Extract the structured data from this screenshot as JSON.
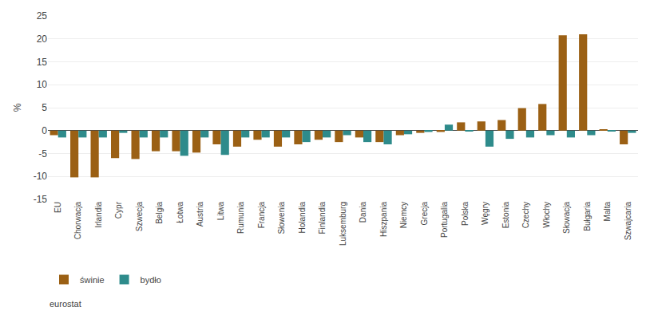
{
  "chart_data": {
    "type": "bar",
    "y_label": "%",
    "annotations": [
      "eurostat"
    ],
    "categories": [
      "EU",
      "Chorwacja",
      "Irlandia",
      "Cypr",
      "Szwecja",
      "Belgia",
      "Łotwa",
      "Austria",
      "Litwa",
      "Rumunia",
      "Francja",
      "Słowenia",
      "Holandia",
      "Finlandia",
      "Luksemburg",
      "Dania",
      "Hiszpania",
      "Niemcy",
      "Grecja",
      "Portugalia",
      "Polska",
      "Węgry",
      "Estonia",
      "Czechy",
      "Włochy",
      "Słowacja",
      "Bułgaria",
      "Malta",
      "Szwajcaria"
    ],
    "series": [
      {
        "name": "świnie",
        "color": "#9B6014",
        "values": [
          -1.0,
          -10.2,
          -10.2,
          -6.0,
          -6.2,
          -4.5,
          -4.5,
          -4.8,
          -3.0,
          -3.5,
          -2.0,
          -3.5,
          -3.0,
          -2.0,
          -2.5,
          -1.5,
          -2.5,
          -1.0,
          -0.5,
          -0.3,
          1.8,
          2.0,
          2.3,
          4.9,
          5.8,
          20.8,
          21.0,
          0.2,
          -3.0
        ]
      },
      {
        "name": "bydło",
        "color": "#2E8B8B",
        "values": [
          -1.5,
          -1.5,
          -1.5,
          -0.5,
          -1.5,
          -1.5,
          -5.5,
          -1.5,
          -5.3,
          -1.5,
          -1.5,
          -1.5,
          -2.5,
          -1.5,
          -1.0,
          -2.5,
          -3.0,
          -0.8,
          -0.3,
          1.3,
          -0.2,
          -3.5,
          -1.8,
          -1.5,
          -1.0,
          -1.5,
          -1.0,
          -0.2,
          -0.5
        ]
      }
    ],
    "ylim": [
      -15,
      25
    ],
    "yticks": [
      -15,
      -10,
      -5,
      0,
      5,
      10,
      15,
      20,
      25
    ],
    "grid": true,
    "legend": "lower left"
  }
}
